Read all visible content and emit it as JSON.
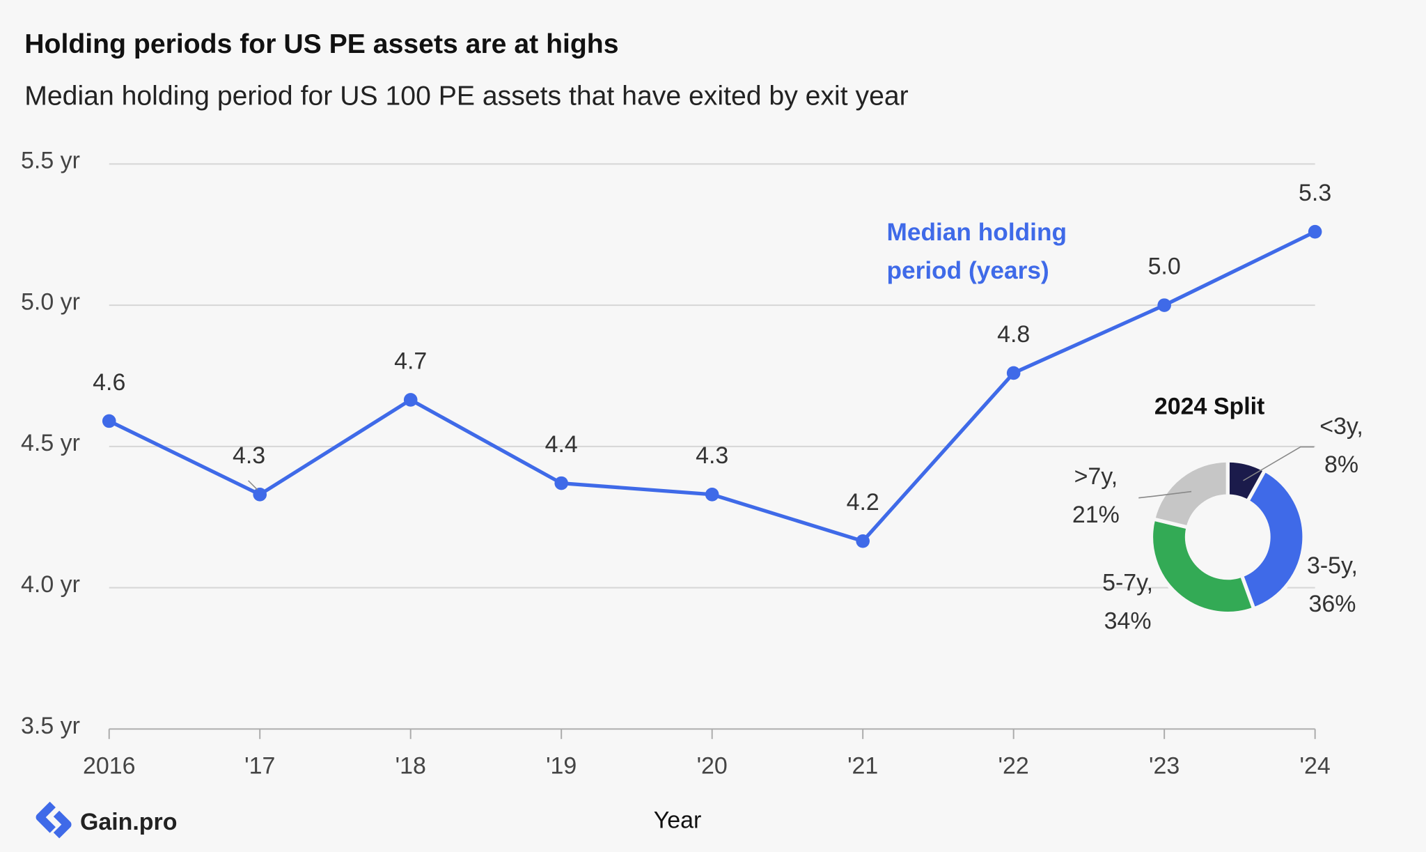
{
  "chart_data": [
    {
      "type": "line",
      "title": "Holding periods for US PE assets are at highs",
      "subtitle": "Median holding period for US 100 PE assets that have exited by exit year",
      "x_label": "Year",
      "source": "Gain.pro",
      "categories": [
        "2016",
        "'17",
        "'18",
        "'19",
        "'20",
        "'21",
        "'22",
        "'23",
        "'24"
      ],
      "series": [
        {
          "name": "Median holding period (years)",
          "color": "#3f6ae8",
          "values": [
            4.59,
            4.33,
            4.665,
            4.37,
            4.33,
            4.165,
            4.76,
            5.0,
            5.26
          ],
          "value_labels": [
            "4.6",
            "4.3",
            "4.7",
            "4.4",
            "4.3",
            "4.2",
            "4.8",
            "5.0",
            "5.3"
          ]
        }
      ],
      "ylim": [
        3.5,
        5.5
      ],
      "yticks": [
        {
          "value": 3.5,
          "label": "3.5 yr"
        },
        {
          "value": 4.0,
          "label": "4.0 yr"
        },
        {
          "value": 4.5,
          "label": "4.5 yr"
        },
        {
          "value": 5.0,
          "label": "5.0 yr"
        },
        {
          "value": 5.5,
          "label": "5.5 yr"
        }
      ],
      "grid": true
    },
    {
      "type": "donut",
      "title": "2024 Split",
      "categories": [
        "<3y,",
        "3-5y,",
        "5-7y,",
        ">7y,"
      ],
      "values": [
        8,
        36,
        34,
        21
      ],
      "value_labels": [
        "8%",
        "36%",
        "34%",
        "21%"
      ],
      "colors": [
        "#1b1b4b",
        "#3f6ae8",
        "#33aa55",
        "#c6c6c6"
      ]
    }
  ]
}
